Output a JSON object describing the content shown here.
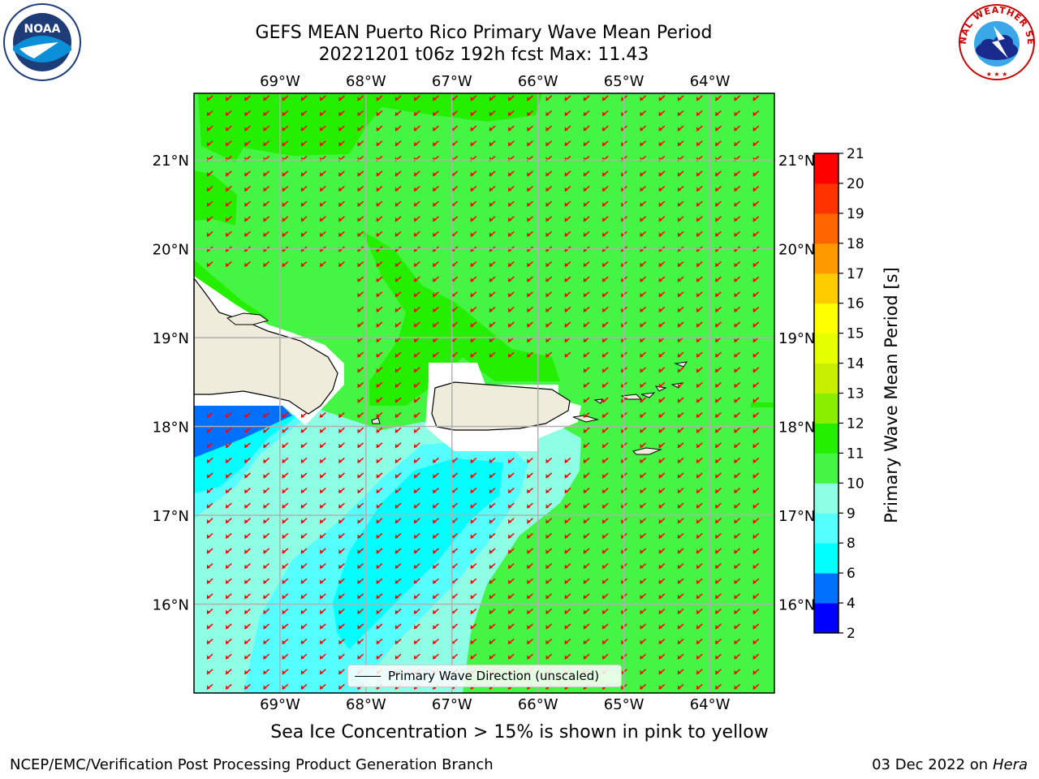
{
  "header": {
    "title_line1": "GEFS MEAN Puerto Rico Primary Wave Mean Period",
    "title_line2": "20221201 t06z 192h fcst   Max: 11.43"
  },
  "logos": {
    "noaa": {
      "text": "NOAA",
      "icon": "noaa-logo-icon"
    },
    "nws": {
      "ring_text": "NATIONAL WEATHER SERVICE",
      "icon": "nws-logo-icon"
    }
  },
  "map": {
    "lon_labels": [
      "69°W",
      "68°W",
      "67°W",
      "66°W",
      "65°W",
      "64°W"
    ],
    "lon_values": [
      -69,
      -68,
      -67,
      -66,
      -65,
      -64
    ],
    "lat_labels": [
      "21°N",
      "20°N",
      "19°N",
      "18°N",
      "17°N",
      "16°N"
    ],
    "lat_values": [
      21,
      20,
      19,
      18,
      17,
      16
    ],
    "lon_range": [
      -70.0,
      -63.25
    ],
    "lat_range": [
      15.0,
      21.75
    ],
    "colors": {
      "land": "#efecdc",
      "coast": "#000000",
      "grid": "#b0b0b0",
      "arrow": "#ff0000",
      "frame": "#000000"
    },
    "arrow_direction": "toward south-west",
    "arrow_icon": "wave-direction-arrow-icon"
  },
  "legend": {
    "label": "Primary Wave Direction (unscaled)"
  },
  "colorbar": {
    "label": "Primary Wave Mean Period [s]",
    "ticks": [
      "2",
      "4",
      "6",
      "8",
      "9",
      "10",
      "11",
      "12",
      "13",
      "14",
      "15",
      "16",
      "17",
      "18",
      "19",
      "20",
      "21"
    ],
    "colors": [
      "#0000ff",
      "#0070ff",
      "#00ffff",
      "#55ffff",
      "#8effe4",
      "#44f544",
      "#24ef00",
      "#88ef00",
      "#c8ef00",
      "#e6ff00",
      "#ffff00",
      "#ffcc00",
      "#ff9900",
      "#ff6600",
      "#ff3300",
      "#ff0000"
    ]
  },
  "caption": "Sea Ice Concentration > 15% is shown in pink to yellow",
  "footer": {
    "left": "NCEP/EMC/Verification Post Processing Product Generation Branch",
    "right_date": "03 Dec 2022 on",
    "right_host": "Hera"
  }
}
